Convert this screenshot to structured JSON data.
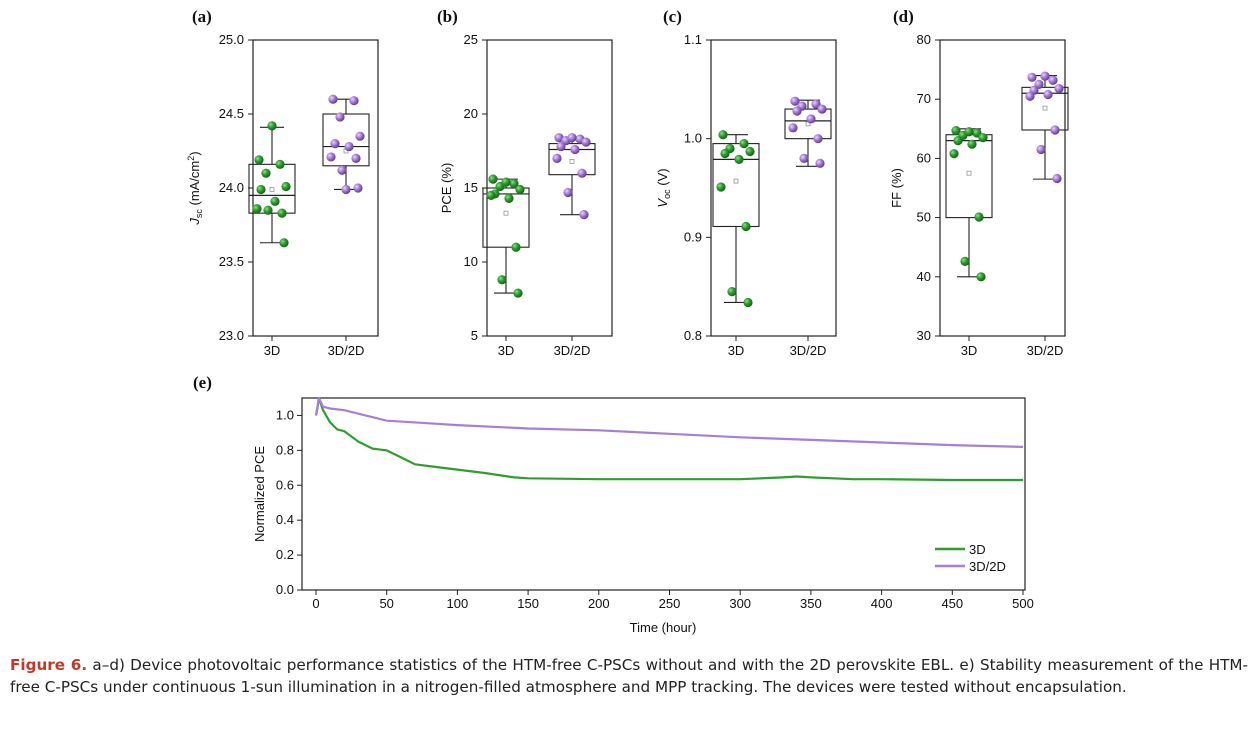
{
  "chart_data": [
    {
      "type": "box",
      "panel": "(a)",
      "ylabel_main": "J",
      "ylabel_sub": "sc",
      "ylabel_rest": " (mA/cm",
      "ylabel_sup": "2",
      "ylabel_end": ")",
      "ylim": [
        23.0,
        25.0
      ],
      "yticks": [
        "23.0",
        "23.5",
        "24.0",
        "24.5",
        "25.0"
      ],
      "categories": [
        "3D",
        "3D/2D"
      ],
      "boxes": [
        {
          "q1": 23.83,
          "median": 23.95,
          "q3": 24.16,
          "whisker_low": 23.63,
          "whisker_high": 24.41,
          "mean": 23.99,
          "points": [
            24.19,
            24.16,
            24.1,
            24.01,
            23.99,
            23.91,
            23.86,
            23.83,
            23.85,
            23.63,
            24.42
          ]
        },
        {
          "q1": 24.15,
          "median": 24.28,
          "q3": 24.5,
          "whisker_low": 23.99,
          "whisker_high": 24.6,
          "mean": 24.25,
          "points": [
            24.6,
            24.59,
            24.48,
            24.35,
            24.3,
            24.28,
            24.21,
            24.2,
            24.12,
            24.0,
            23.99
          ]
        }
      ]
    },
    {
      "type": "box",
      "panel": "(b)",
      "ylabel_main": "PCE (%)",
      "ylim": [
        5,
        25
      ],
      "yticks": [
        "5",
        "10",
        "15",
        "20",
        "25"
      ],
      "categories": [
        "3D",
        "3D/2D"
      ],
      "boxes": [
        {
          "q1": 11.0,
          "median": 14.6,
          "q3": 15.0,
          "whisker_low": 7.9,
          "whisker_high": 15.6,
          "mean": 13.3,
          "points": [
            15.6,
            15.3,
            15.1,
            14.9,
            14.6,
            14.3,
            14.5,
            11.0,
            8.8,
            7.9,
            15.4
          ]
        },
        {
          "q1": 15.9,
          "median": 17.6,
          "q3": 18.0,
          "whisker_low": 13.2,
          "whisker_high": 18.4,
          "mean": 16.8,
          "points": [
            18.4,
            18.3,
            18.2,
            18.1,
            17.8,
            17.6,
            17.0,
            16.0,
            14.7,
            13.2,
            18.4
          ]
        }
      ]
    },
    {
      "type": "box",
      "panel": "(c)",
      "ylabel_main": "V",
      "ylabel_sub": "oc",
      "ylabel_rest": " (V)",
      "ylim": [
        0.8,
        1.1
      ],
      "yticks": [
        "0.8",
        "0.9",
        "1.0",
        "1.1"
      ],
      "categories": [
        "3D",
        "3D/2D"
      ],
      "boxes": [
        {
          "q1": 0.911,
          "median": 0.979,
          "q3": 0.995,
          "whisker_low": 0.834,
          "whisker_high": 1.004,
          "mean": 0.957,
          "points": [
            1.004,
            0.995,
            0.99,
            0.987,
            0.985,
            0.979,
            0.951,
            0.911,
            0.845,
            0.834
          ]
        },
        {
          "q1": 1.0,
          "median": 1.018,
          "q3": 1.03,
          "whisker_low": 0.972,
          "whisker_high": 1.039,
          "mean": 1.015,
          "points": [
            1.038,
            1.035,
            1.033,
            1.03,
            1.028,
            1.02,
            1.011,
            1.0,
            0.98,
            0.975
          ]
        }
      ]
    },
    {
      "type": "box",
      "panel": "(d)",
      "ylabel_main": "FF (%)",
      "ylim": [
        30,
        80
      ],
      "yticks": [
        "30",
        "40",
        "50",
        "60",
        "70",
        "80"
      ],
      "categories": [
        "3D",
        "3D/2D"
      ],
      "boxes": [
        {
          "q1": 50.0,
          "median": 63.0,
          "q3": 64.0,
          "whisker_low": 40.0,
          "whisker_high": 65.0,
          "mean": 57.5,
          "points": [
            64.7,
            64.3,
            63.9,
            63.5,
            63.0,
            62.4,
            60.8,
            50.1,
            42.6,
            40.0,
            64.5
          ]
        },
        {
          "q1": 64.8,
          "median": 71.0,
          "q3": 72.0,
          "whisker_low": 56.5,
          "whisker_high": 74.0,
          "mean": 68.5,
          "points": [
            73.7,
            73.2,
            72.5,
            71.8,
            71.5,
            70.8,
            70.5,
            64.8,
            61.5,
            56.6,
            73.9
          ]
        }
      ]
    },
    {
      "type": "line",
      "panel": "(e)",
      "xlabel": "Time (hour)",
      "ylabel": "Normalized PCE",
      "xlim": [
        0,
        500
      ],
      "ylim": [
        0.0,
        1.1
      ],
      "xticks": [
        "0",
        "50",
        "100",
        "150",
        "200",
        "250",
        "300",
        "350",
        "400",
        "450",
        "500"
      ],
      "yticks": [
        "0.0",
        "0.2",
        "0.4",
        "0.6",
        "0.8",
        "1.0"
      ],
      "legend_position": "bottom-right",
      "series": [
        {
          "name": "3D",
          "points": [
            [
              0,
              1.0
            ],
            [
              1,
              1.04
            ],
            [
              2,
              1.1
            ],
            [
              5,
              1.03
            ],
            [
              10,
              0.96
            ],
            [
              15,
              0.92
            ],
            [
              20,
              0.91
            ],
            [
              30,
              0.85
            ],
            [
              40,
              0.81
            ],
            [
              50,
              0.8
            ],
            [
              60,
              0.76
            ],
            [
              70,
              0.72
            ],
            [
              80,
              0.71
            ],
            [
              100,
              0.69
            ],
            [
              120,
              0.67
            ],
            [
              140,
              0.645
            ],
            [
              150,
              0.64
            ],
            [
              200,
              0.635
            ],
            [
              250,
              0.635
            ],
            [
              300,
              0.635
            ],
            [
              330,
              0.645
            ],
            [
              340,
              0.65
            ],
            [
              350,
              0.645
            ],
            [
              380,
              0.635
            ],
            [
              400,
              0.635
            ],
            [
              450,
              0.63
            ],
            [
              500,
              0.63
            ]
          ]
        },
        {
          "name": "3D/2D",
          "points": [
            [
              0,
              1.0
            ],
            [
              1,
              1.05
            ],
            [
              2,
              1.1
            ],
            [
              5,
              1.05
            ],
            [
              10,
              1.04
            ],
            [
              20,
              1.03
            ],
            [
              30,
              1.01
            ],
            [
              40,
              0.99
            ],
            [
              50,
              0.97
            ],
            [
              80,
              0.955
            ],
            [
              100,
              0.945
            ],
            [
              150,
              0.925
            ],
            [
              200,
              0.915
            ],
            [
              250,
              0.895
            ],
            [
              300,
              0.875
            ],
            [
              350,
              0.86
            ],
            [
              400,
              0.845
            ],
            [
              450,
              0.83
            ],
            [
              500,
              0.82
            ]
          ]
        }
      ]
    }
  ],
  "caption": {
    "fig_num": "Figure 6.",
    "text": " a–d) Device photovoltaic performance statistics of the HTM-free C-PSCs without and with the 2D perovskite EBL. e) Stability measurement of the HTM-free C-PSCs under continuous 1-sun illumination in a nitrogen-filled atmosphere and MPP tracking. The devices were tested without encapsulation."
  },
  "colors": {
    "green": "#2e9e2e",
    "green_dark": "#166b16",
    "purple": "#a87ed6",
    "purple_dark": "#6a3fa0"
  }
}
